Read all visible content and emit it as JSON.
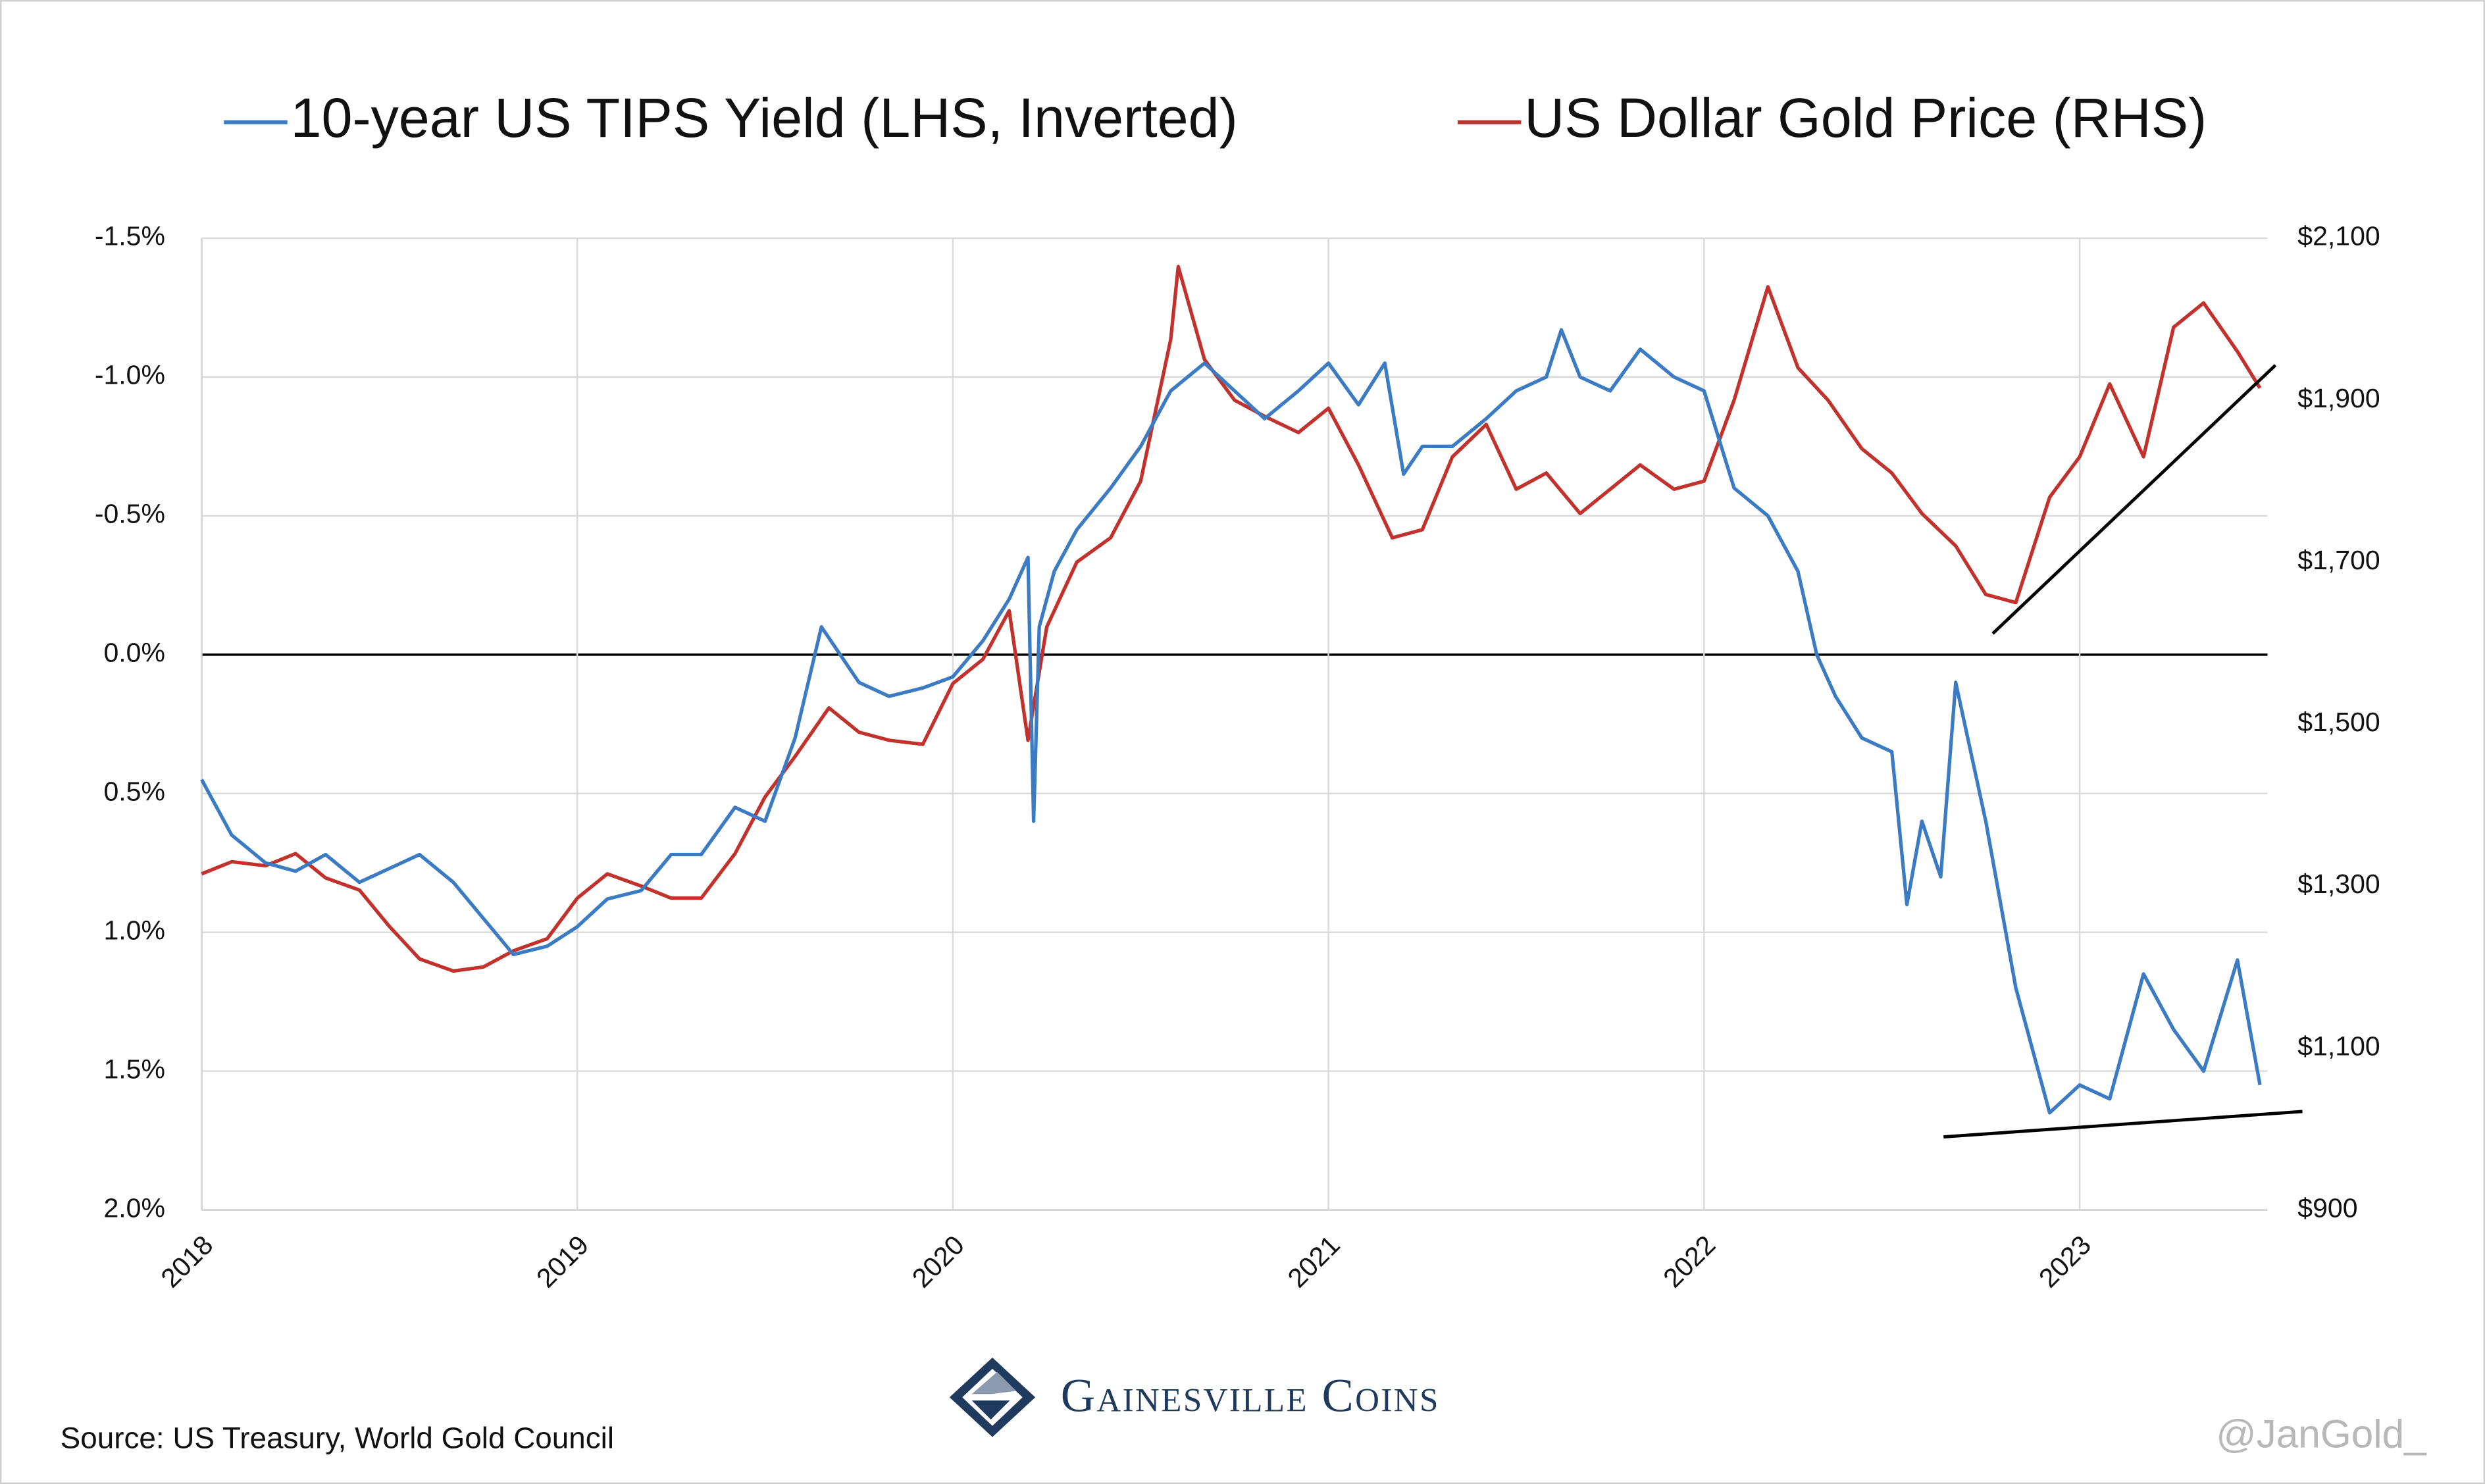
{
  "chart_data": {
    "type": "line",
    "legend": "top",
    "grid": true,
    "xlim": [
      2018,
      2023.5
    ],
    "xticks": [
      2018,
      2019,
      2020,
      2021,
      2022,
      2023
    ],
    "ylim": [
      -1.5,
      2.0
    ],
    "y_inverted": true,
    "yticks": [
      {
        "value": -1.5,
        "label": "-1.5%"
      },
      {
        "value": -1.0,
        "label": "-1.0%"
      },
      {
        "value": -0.5,
        "label": "-0.5%"
      },
      {
        "value": 0,
        "label": "0.0%"
      },
      {
        "value": 0.5,
        "label": "0.5%"
      },
      {
        "value": 1.0,
        "label": "1.0%"
      },
      {
        "value": 1.5,
        "label": "1.5%"
      },
      {
        "value": 2.0,
        "label": "2.0%"
      }
    ],
    "y2lim": [
      900,
      2100
    ],
    "y2ticks": [
      {
        "value": 900,
        "label": "$900"
      },
      {
        "value": 1100,
        "label": "$1,100"
      },
      {
        "value": 1300,
        "label": "$1,300"
      },
      {
        "value": 1500,
        "label": "$1,500"
      },
      {
        "value": 1700,
        "label": "$1,700"
      },
      {
        "value": 1900,
        "label": "$1,900"
      },
      {
        "value": 2100,
        "label": "$2,100"
      }
    ],
    "series": [
      {
        "name": "10-year US TIPS Yield (LHS, Inverted)",
        "color": "#3b7bc4",
        "x": [
          2018.0,
          2018.08,
          2018.17,
          2018.25,
          2018.33,
          2018.42,
          2018.5,
          2018.58,
          2018.67,
          2018.75,
          2018.83,
          2018.92,
          2019.0,
          2019.08,
          2019.17,
          2019.25,
          2019.33,
          2019.42,
          2019.5,
          2019.58,
          2019.65,
          2019.75,
          2019.83,
          2019.92,
          2020.0,
          2020.08,
          2020.15,
          2020.2,
          2020.215,
          2020.23,
          2020.27,
          2020.33,
          2020.42,
          2020.5,
          2020.58,
          2020.67,
          2020.75,
          2020.83,
          2020.92,
          2021.0,
          2021.08,
          2021.15,
          2021.2,
          2021.25,
          2021.33,
          2021.42,
          2021.5,
          2021.58,
          2021.62,
          2021.67,
          2021.75,
          2021.83,
          2021.92,
          2022.0,
          2022.08,
          2022.17,
          2022.25,
          2022.3,
          2022.35,
          2022.42,
          2022.5,
          2022.54,
          2022.58,
          2022.63,
          2022.67,
          2022.75,
          2022.83,
          2022.92,
          2023.0,
          2023.08,
          2023.17,
          2023.25,
          2023.33,
          2023.42,
          2023.48
        ],
        "values": [
          0.45,
          0.65,
          0.75,
          0.78,
          0.72,
          0.82,
          0.77,
          0.72,
          0.82,
          0.95,
          1.08,
          1.05,
          0.98,
          0.88,
          0.85,
          0.72,
          0.72,
          0.55,
          0.6,
          0.3,
          -0.1,
          0.1,
          0.15,
          0.12,
          0.08,
          -0.05,
          -0.2,
          -0.35,
          0.6,
          -0.1,
          -0.3,
          -0.45,
          -0.6,
          -0.75,
          -0.95,
          -1.05,
          -0.95,
          -0.85,
          -0.95,
          -1.05,
          -0.9,
          -1.05,
          -0.65,
          -0.75,
          -0.75,
          -0.85,
          -0.95,
          -1.0,
          -1.17,
          -1.0,
          -0.95,
          -1.1,
          -1.0,
          -0.95,
          -0.6,
          -0.5,
          -0.3,
          0.0,
          0.15,
          0.3,
          0.35,
          0.9,
          0.6,
          0.8,
          0.1,
          0.6,
          1.2,
          1.65,
          1.55,
          1.6,
          1.15,
          1.35,
          1.5,
          1.1,
          1.55
        ]
      },
      {
        "name": "US Dollar Gold Price (RHS)",
        "color": "#c3312c",
        "axis": "y2",
        "x": [
          2018.0,
          2018.08,
          2018.17,
          2018.25,
          2018.33,
          2018.42,
          2018.5,
          2018.58,
          2018.67,
          2018.75,
          2018.83,
          2018.92,
          2019.0,
          2019.08,
          2019.17,
          2019.25,
          2019.33,
          2019.42,
          2019.5,
          2019.58,
          2019.67,
          2019.75,
          2019.83,
          2019.92,
          2020.0,
          2020.08,
          2020.15,
          2020.2,
          2020.25,
          2020.33,
          2020.42,
          2020.5,
          2020.58,
          2020.6,
          2020.67,
          2020.75,
          2020.83,
          2020.92,
          2021.0,
          2021.08,
          2021.17,
          2021.25,
          2021.33,
          2021.42,
          2021.5,
          2021.58,
          2021.67,
          2021.75,
          2021.83,
          2021.92,
          2022.0,
          2022.08,
          2022.17,
          2022.25,
          2022.33,
          2022.42,
          2022.5,
          2022.58,
          2022.67,
          2022.75,
          2022.83,
          2022.92,
          2023.0,
          2023.08,
          2023.17,
          2023.25,
          2023.33,
          2023.42,
          2023.48
        ],
        "values": [
          1315,
          1330,
          1325,
          1340,
          1310,
          1295,
          1250,
          1210,
          1195,
          1200,
          1220,
          1235,
          1285,
          1315,
          1300,
          1285,
          1285,
          1340,
          1410,
          1460,
          1520,
          1490,
          1480,
          1475,
          1550,
          1580,
          1640,
          1480,
          1620,
          1700,
          1730,
          1800,
          1975,
          2065,
          1950,
          1900,
          1880,
          1860,
          1890,
          1820,
          1730,
          1740,
          1830,
          1870,
          1790,
          1810,
          1760,
          1790,
          1820,
          1790,
          1800,
          1900,
          2040,
          1940,
          1900,
          1840,
          1810,
          1760,
          1720,
          1660,
          1650,
          1780,
          1830,
          1920,
          1830,
          1990,
          2020,
          1960,
          1915
        ]
      }
    ],
    "source": "Source: US Treasury, World Gold Council",
    "credit": "@JanGold_",
    "brand": "Gainesville Coins"
  }
}
